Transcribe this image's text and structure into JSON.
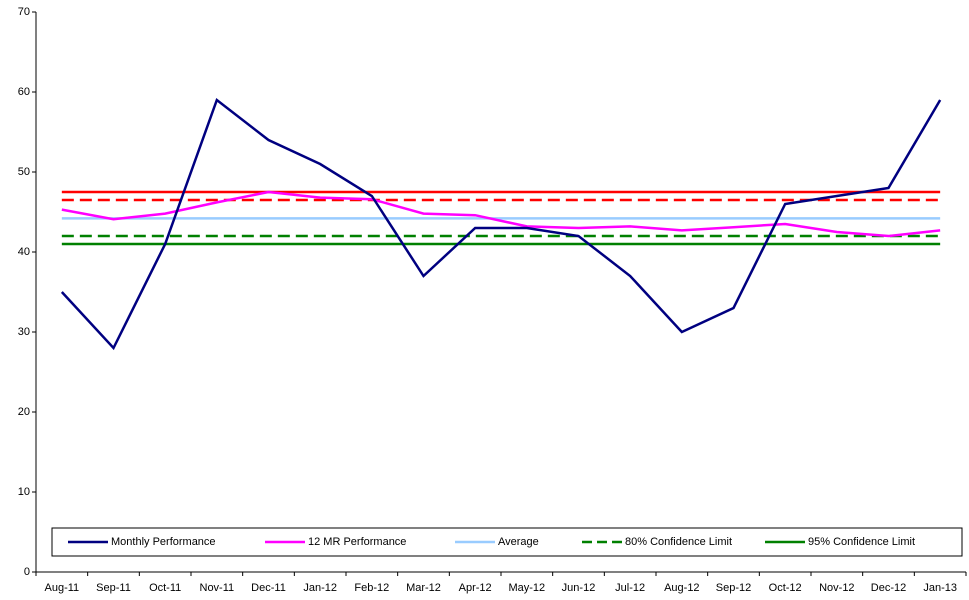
{
  "chart_data": {
    "type": "line",
    "categories": [
      "Aug-11",
      "Sep-11",
      "Oct-11",
      "Nov-11",
      "Dec-11",
      "Jan-12",
      "Feb-12",
      "Mar-12",
      "Apr-12",
      "May-12",
      "Jun-12",
      "Jul-12",
      "Aug-12",
      "Sep-12",
      "Oct-12",
      "Nov-12",
      "Dec-12",
      "Jan-13"
    ],
    "series": [
      {
        "color": "#ff0000",
        "dashed": false,
        "values": [
          47.5,
          47.5,
          47.5,
          47.5,
          47.5,
          47.5,
          47.5,
          47.5,
          47.5,
          47.5,
          47.5,
          47.5,
          47.5,
          47.5,
          47.5,
          47.5,
          47.5,
          47.5
        ]
      },
      {
        "color": "#ff0000",
        "dashed": true,
        "values": [
          46.5,
          46.5,
          46.5,
          46.5,
          46.5,
          46.5,
          46.5,
          46.5,
          46.5,
          46.5,
          46.5,
          46.5,
          46.5,
          46.5,
          46.5,
          46.5,
          46.5,
          46.5
        ]
      },
      {
        "name": "Average",
        "color": "#99ccff",
        "dashed": false,
        "values": [
          44.2,
          44.2,
          44.2,
          44.2,
          44.2,
          44.2,
          44.2,
          44.2,
          44.2,
          44.2,
          44.2,
          44.2,
          44.2,
          44.2,
          44.2,
          44.2,
          44.2,
          44.2
        ]
      },
      {
        "name": "80% Confidence Limit",
        "color": "#008000",
        "dashed": true,
        "values": [
          42,
          42,
          42,
          42,
          42,
          42,
          42,
          42,
          42,
          42,
          42,
          42,
          42,
          42,
          42,
          42,
          42,
          42
        ]
      },
      {
        "name": "95% Confidence Limit",
        "color": "#008000",
        "dashed": false,
        "values": [
          41,
          41,
          41,
          41,
          41,
          41,
          41,
          41,
          41,
          41,
          41,
          41,
          41,
          41,
          41,
          41,
          41,
          41
        ]
      },
      {
        "name": "12 MR Performance",
        "color": "#ff00ff",
        "dashed": false,
        "values": [
          45.3,
          44.1,
          44.8,
          46.2,
          47.5,
          46.8,
          46.6,
          44.8,
          44.6,
          43.2,
          43,
          43.2,
          42.7,
          43.1,
          43.5,
          42.5,
          42,
          42.7
        ]
      },
      {
        "name": "Monthly Performance",
        "color": "#000080",
        "dashed": false,
        "values": [
          35,
          28,
          41,
          59,
          54,
          51,
          47,
          37,
          43,
          43,
          42,
          37,
          30,
          33,
          46,
          47,
          48,
          59
        ]
      }
    ],
    "legend_order": [
      6,
      5,
      2,
      3,
      4
    ],
    "ylim": [
      0,
      70
    ],
    "yticks": [
      0,
      10,
      20,
      30,
      40,
      50,
      60,
      70
    ],
    "grid": false
  }
}
